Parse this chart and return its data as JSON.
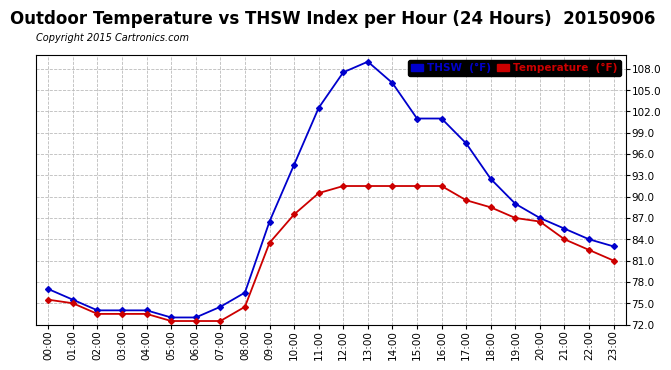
{
  "title": "Outdoor Temperature vs THSW Index per Hour (24 Hours)  20150906",
  "copyright": "Copyright 2015 Cartronics.com",
  "hours": [
    "00:00",
    "01:00",
    "02:00",
    "03:00",
    "04:00",
    "05:00",
    "06:00",
    "07:00",
    "08:00",
    "09:00",
    "10:00",
    "11:00",
    "12:00",
    "13:00",
    "14:00",
    "15:00",
    "16:00",
    "17:00",
    "18:00",
    "19:00",
    "20:00",
    "21:00",
    "22:00",
    "23:00"
  ],
  "thsw": [
    77.0,
    75.5,
    74.0,
    74.0,
    74.0,
    73.0,
    73.0,
    74.5,
    76.5,
    86.5,
    94.5,
    102.5,
    107.5,
    109.0,
    106.0,
    101.0,
    101.0,
    97.5,
    92.5,
    89.0,
    87.0,
    85.5,
    84.0,
    83.0
  ],
  "temp": [
    75.5,
    75.0,
    73.5,
    73.5,
    73.5,
    72.5,
    72.5,
    72.5,
    74.5,
    83.5,
    87.5,
    90.5,
    91.5,
    91.5,
    91.5,
    91.5,
    91.5,
    89.5,
    88.5,
    87.0,
    86.5,
    84.0,
    82.5,
    81.0
  ],
  "thsw_color": "#0000cc",
  "temp_color": "#cc0000",
  "bg_color": "#ffffff",
  "grid_color": "#bbbbbb",
  "ylim_min": 72.0,
  "ylim_max": 110.0,
  "yticks": [
    72.0,
    75.0,
    78.0,
    81.0,
    84.0,
    87.0,
    90.0,
    93.0,
    96.0,
    99.0,
    102.0,
    105.0,
    108.0
  ],
  "title_fontsize": 12,
  "copyright_fontsize": 7,
  "axis_fontsize": 7.5,
  "legend_thsw_label": "THSW  (°F)",
  "legend_temp_label": "Temperature  (°F)"
}
